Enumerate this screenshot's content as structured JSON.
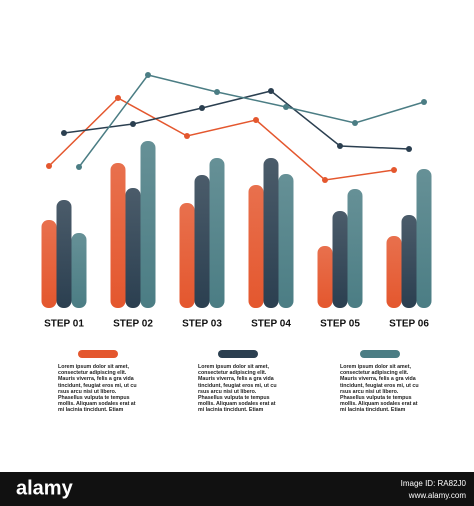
{
  "chart_data": {
    "type": "bar",
    "categories": [
      "STEP 01",
      "STEP 02",
      "STEP 03",
      "STEP 04",
      "STEP 05",
      "STEP 06"
    ],
    "series": [
      {
        "color": "#e4572e",
        "values": [
          88,
          145,
          105,
          123,
          62,
          72
        ]
      },
      {
        "color": "#2b3f50",
        "values": [
          108,
          120,
          133,
          150,
          97,
          93
        ]
      },
      {
        "color": "#4b7d84",
        "values": [
          75,
          167,
          150,
          134,
          119,
          139
        ]
      }
    ],
    "lines": [
      {
        "color": "#e4572e",
        "values": [
          142,
          210,
          172,
          188,
          128,
          138
        ]
      },
      {
        "color": "#2b3f50",
        "values": [
          175,
          184,
          200,
          217,
          162,
          159
        ]
      },
      {
        "color": "#4b7d84",
        "values": [
          141,
          233,
          216,
          201,
          185,
          206
        ]
      }
    ],
    "ylim": [
      0,
      240
    ],
    "legend_texts": [
      "Lorem ipsum dolor sit amet, consectetur adipiscing elit. Mauris viverra, felis a gra vida tincidunt, feugiat eros mi, ut cu rsus arcu nisi ut libero. Phasellus vulputa te tempus mollis. Aliquam sodales erat at mi lacinia tincidunt. Etiam euismod ma ssa quis fringilla sagittis tristique. Donec ac lacus facilisis malesuada.",
      "Lorem ipsum dolor sit amet, consectetur adipiscing elit. Mauris viverra, felis a gra vida tincidunt, feugiat eros mi, ut cu rsus arcu nisi ut libero. Phasellus vulputa te tempus mollis. Aliquam sodales erat at mi lacinia tincidunt. Etiam euismod ma ssa quis fringilla sagittis tristique. Donec ac lacus facilisis malesuada.",
      "Lorem ipsum dolor sit amet, consectetur adipiscing elit. Mauris viverra, felis a gra vida tincidunt, feugiat eros mi, ut cu rsus arcu nisi ut libero. Phasellus vulputa te tempus mollis. Aliquam sodales erat at mi lacinia tincidunt. Etiam euismod ma ssa quis fringilla sagittis tristique. Donec ac lacus facilisis malesuada."
    ]
  },
  "watermark": {
    "brand": "alamy",
    "image_id": "Image ID: RA82J0",
    "url": "www.alamy.com"
  }
}
